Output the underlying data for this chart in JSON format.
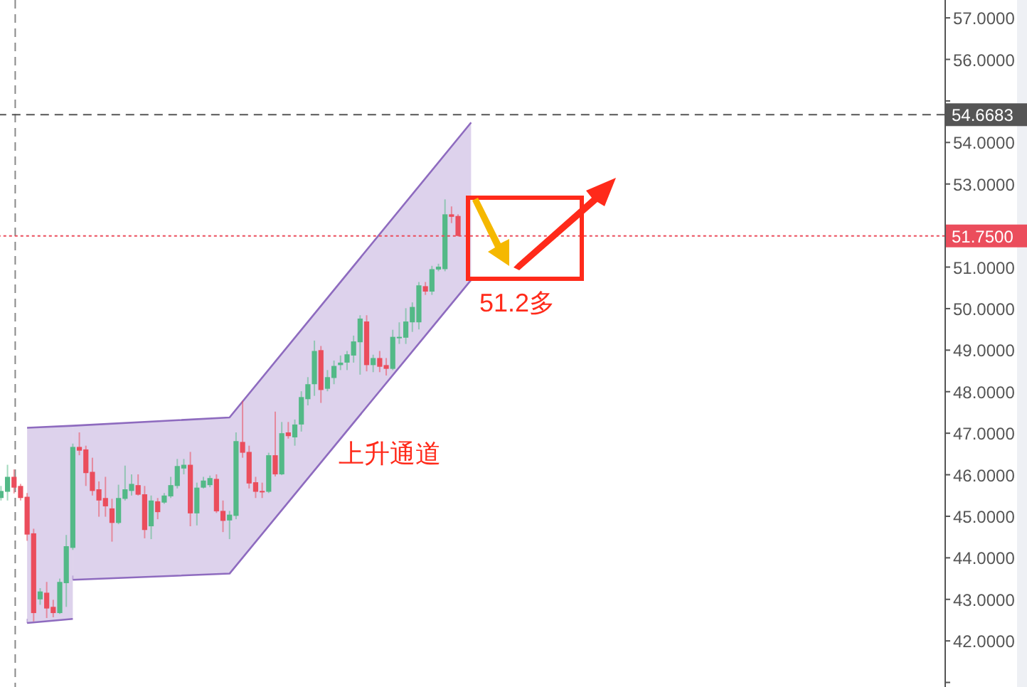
{
  "chart_data": {
    "type": "candlestick",
    "categories": [
      null,
      null,
      null,
      null,
      null,
      null,
      null,
      null,
      null,
      null,
      null,
      null,
      null,
      null,
      null,
      null,
      null,
      null,
      null,
      null,
      null,
      null,
      null,
      null,
      null,
      null,
      null,
      null,
      null,
      null,
      null,
      null,
      null,
      null,
      null,
      null,
      null,
      null,
      null,
      null,
      null,
      null,
      null,
      null,
      null,
      null,
      null,
      null,
      null,
      null,
      null,
      null,
      null,
      null,
      null,
      null,
      null,
      null,
      null,
      null,
      null,
      null,
      null,
      null,
      null,
      null,
      null,
      null,
      null,
      null,
      null,
      null,
      null,
      null,
      null,
      null,
      null,
      null,
      null,
      null,
      null,
      null,
      null,
      null,
      null,
      null,
      null,
      null,
      null,
      null,
      null,
      null,
      null,
      null,
      null,
      null,
      null,
      null,
      null,
      null,
      null,
      null,
      null,
      null,
      null,
      null,
      null,
      null,
      null,
      null,
      null,
      null,
      null,
      null,
      null,
      null,
      null,
      null,
      null,
      null,
      null,
      null,
      null,
      null,
      null,
      null,
      null,
      null,
      null,
      null,
      null,
      null,
      null,
      null,
      null,
      null,
      null,
      null,
      null,
      null,
      null,
      null,
      null,
      null,
      null
    ],
    "ohlc": [
      [
        45.44,
        45.73,
        45.38,
        45.61
      ],
      [
        45.59,
        46.24,
        45.38,
        45.95
      ],
      [
        45.95,
        46.13,
        45.55,
        45.69
      ],
      [
        45.73,
        45.78,
        45.38,
        45.44
      ],
      [
        45.47,
        45.56,
        44.41,
        44.56
      ],
      [
        44.59,
        44.7,
        42.47,
        42.67
      ],
      [
        43.0,
        43.27,
        42.87,
        43.19
      ],
      [
        43.16,
        43.42,
        42.55,
        42.78
      ],
      [
        42.82,
        42.99,
        42.57,
        42.67
      ],
      [
        42.67,
        43.5,
        42.65,
        43.42
      ],
      [
        43.39,
        44.55,
        42.82,
        44.28
      ],
      [
        44.24,
        46.75,
        44.19,
        46.67
      ],
      [
        46.67,
        47.02,
        46.47,
        46.58
      ],
      [
        46.61,
        46.7,
        45.73,
        46.04
      ],
      [
        46.07,
        46.41,
        45.5,
        45.61
      ],
      [
        45.65,
        45.84,
        44.99,
        45.38
      ],
      [
        45.44,
        45.95,
        44.99,
        45.24
      ],
      [
        45.19,
        45.42,
        44.39,
        44.84
      ],
      [
        44.84,
        45.76,
        44.81,
        45.44
      ],
      [
        45.42,
        46.22,
        45.38,
        45.65
      ],
      [
        45.61,
        46.01,
        45.5,
        45.78
      ],
      [
        45.75,
        46.01,
        45.5,
        45.52
      ],
      [
        45.53,
        45.73,
        44.47,
        44.67
      ],
      [
        44.76,
        45.5,
        44.45,
        45.38
      ],
      [
        45.36,
        45.44,
        44.93,
        45.1
      ],
      [
        45.33,
        45.56,
        45.3,
        45.5
      ],
      [
        45.48,
        45.95,
        45.44,
        45.75
      ],
      [
        45.73,
        46.38,
        45.67,
        46.21
      ],
      [
        46.15,
        46.38,
        46.01,
        46.24
      ],
      [
        46.24,
        46.55,
        44.76,
        45.07
      ],
      [
        45.07,
        45.81,
        44.78,
        45.69
      ],
      [
        45.69,
        45.95,
        45.67,
        45.86
      ],
      [
        45.75,
        45.98,
        45.7,
        45.92
      ],
      [
        45.9,
        46.01,
        45.08,
        45.12
      ],
      [
        45.13,
        45.38,
        44.62,
        44.89
      ],
      [
        44.9,
        45.13,
        44.45,
        45.04
      ],
      [
        45.01,
        47.02,
        44.93,
        46.81
      ],
      [
        46.79,
        47.78,
        46.41,
        46.53
      ],
      [
        46.55,
        46.7,
        45.67,
        45.79
      ],
      [
        45.82,
        45.95,
        45.44,
        45.59
      ],
      [
        45.61,
        45.81,
        45.44,
        45.58
      ],
      [
        45.59,
        46.53,
        45.56,
        46.47
      ],
      [
        46.47,
        47.52,
        45.96,
        46.01
      ],
      [
        46.01,
        47.27,
        45.99,
        47.0
      ],
      [
        47.02,
        47.27,
        46.87,
        46.93
      ],
      [
        46.9,
        47.33,
        46.7,
        47.21
      ],
      [
        47.21,
        48.01,
        47.04,
        47.87
      ],
      [
        47.82,
        48.35,
        47.67,
        48.18
      ],
      [
        48.18,
        49.23,
        47.9,
        48.98
      ],
      [
        49.0,
        49.1,
        47.73,
        48.04
      ],
      [
        48.07,
        48.52,
        48.01,
        48.35
      ],
      [
        48.33,
        48.75,
        48.18,
        48.62
      ],
      [
        48.64,
        48.87,
        48.52,
        48.7
      ],
      [
        48.7,
        48.98,
        48.52,
        48.9
      ],
      [
        48.87,
        49.35,
        48.7,
        49.21
      ],
      [
        49.19,
        49.84,
        48.41,
        49.76
      ],
      [
        49.69,
        49.84,
        48.49,
        48.64
      ],
      [
        48.64,
        48.89,
        48.47,
        48.81
      ],
      [
        48.81,
        48.98,
        48.47,
        48.6
      ],
      [
        48.64,
        48.81,
        48.39,
        48.55
      ],
      [
        48.55,
        49.49,
        48.52,
        49.32
      ],
      [
        49.29,
        49.67,
        49.15,
        49.32
      ],
      [
        49.3,
        50.01,
        49.15,
        49.69
      ],
      [
        49.67,
        50.15,
        49.44,
        50.04
      ],
      [
        49.67,
        50.64,
        49.5,
        50.56
      ],
      [
        50.54,
        50.64,
        50.33,
        50.41
      ],
      [
        50.41,
        51.03,
        50.33,
        50.95
      ],
      [
        50.94,
        51.08,
        50.9,
        51.01
      ],
      [
        50.95,
        52.63,
        50.9,
        52.27
      ],
      [
        52.27,
        52.46,
        52.06,
        52.21
      ],
      [
        52.23,
        52.27,
        51.74,
        51.75
      ],
      null,
      null,
      null,
      null,
      null,
      null,
      null,
      null,
      null,
      null,
      null,
      null,
      null,
      null,
      null,
      null,
      null,
      null,
      null,
      null,
      null,
      null,
      null,
      null,
      null,
      null,
      null,
      null,
      null,
      null,
      null,
      null,
      null,
      null,
      null,
      null,
      null,
      null,
      null,
      null,
      null,
      null,
      null,
      null,
      null,
      null,
      null,
      null,
      null,
      null,
      null,
      null,
      null,
      null,
      null,
      null,
      null,
      null,
      null,
      null,
      null,
      null,
      null,
      null,
      null,
      null,
      null,
      null,
      null,
      null,
      null,
      null,
      null,
      null
    ],
    "colors": [
      "#53b987",
      "#53b987",
      "#eb4d5c",
      "#eb4d5c",
      "#eb4d5c",
      "#eb4d5c",
      "#53b987",
      "#eb4d5c",
      "#eb4d5c",
      "#53b987",
      "#53b987",
      "#53b987",
      "#eb4d5c",
      "#eb4d5c",
      "#eb4d5c",
      "#eb4d5c",
      "#eb4d5c",
      "#eb4d5c",
      "#53b987",
      "#53b987",
      "#53b987",
      "#eb4d5c",
      "#eb4d5c",
      "#53b987",
      "#eb4d5c",
      "#53b987",
      "#53b987",
      "#53b987",
      "#53b987",
      "#eb4d5c",
      "#53b987",
      "#53b987",
      "#53b987",
      "#eb4d5c",
      "#eb4d5c",
      "#53b987",
      "#53b987",
      "#eb4d5c",
      "#eb4d5c",
      "#eb4d5c",
      "#eb4d5c",
      "#53b987",
      "#eb4d5c",
      "#53b987",
      "#eb4d5c",
      "#53b987",
      "#53b987",
      "#53b987",
      "#53b987",
      "#eb4d5c",
      "#53b987",
      "#53b987",
      "#53b987",
      "#53b987",
      "#53b987",
      "#53b987",
      "#eb4d5c",
      "#53b987",
      "#eb4d5c",
      "#eb4d5c",
      "#53b987",
      "#53b987",
      "#53b987",
      "#53b987",
      "#53b987",
      "#eb4d5c",
      "#53b987",
      "#53b987",
      "#53b987",
      "#eb4d5c",
      "#eb4d5c",
      null,
      null,
      null,
      null,
      null,
      null,
      null,
      null,
      null,
      null,
      null,
      null,
      null,
      null,
      null,
      null,
      null,
      null,
      null,
      null,
      null,
      null,
      null,
      null,
      null,
      null,
      null,
      null,
      null,
      null,
      null,
      null,
      null,
      null,
      null,
      null,
      null,
      null,
      null,
      null,
      null,
      null,
      null,
      null,
      null,
      null,
      null,
      null,
      null,
      null,
      null,
      null,
      null,
      null,
      null,
      null,
      null,
      null,
      null,
      null,
      null,
      null,
      null,
      null,
      null,
      null,
      null,
      null,
      null,
      null,
      null,
      null,
      null,
      null
    ],
    "series": [
      {
        "type": "line",
        "color": "#8e6bbf",
        "values": [
          null,
          null,
          null,
          null,
          47.13,
          null,
          null,
          null,
          null,
          null,
          null,
          47.18,
          null,
          null,
          null,
          null,
          null,
          null,
          null,
          null,
          null,
          null,
          null,
          null,
          null,
          null,
          null,
          null,
          null,
          null,
          null,
          null,
          null,
          null,
          null,
          47.38,
          null,
          null,
          null,
          null,
          null,
          null,
          null,
          null,
          null,
          null,
          null,
          null,
          null,
          null,
          null,
          null,
          null,
          null,
          null,
          null,
          null,
          null,
          null,
          null,
          null,
          null,
          null,
          null,
          null,
          null,
          null,
          null,
          null,
          null,
          null,
          null,
          54.48,
          null,
          null,
          null,
          null,
          null,
          null,
          null,
          null,
          null,
          null,
          null,
          null,
          null,
          null,
          null,
          null,
          null,
          null,
          null,
          null,
          null,
          null,
          null,
          null,
          null,
          null,
          null,
          null,
          null,
          null,
          null,
          null,
          null,
          null,
          null,
          null,
          null,
          null,
          null,
          null,
          null,
          null,
          null,
          null,
          null,
          null,
          null,
          null,
          null,
          null,
          null,
          null,
          null,
          null,
          null,
          null,
          null,
          null,
          null,
          null,
          null,
          null,
          null,
          null,
          null,
          null,
          null,
          null,
          null,
          null,
          null,
          null
        ]
      },
      {
        "type": "line",
        "color": "#8e6bbf",
        "values": [
          null,
          null,
          null,
          null,
          42.43,
          null,
          null,
          null,
          null,
          null,
          null,
          42.53,
          null,
          null,
          null,
          null,
          null,
          null,
          null,
          null,
          null,
          null,
          null,
          null,
          null,
          null,
          null,
          null,
          null,
          null,
          null,
          null,
          null,
          null,
          null,
          null,
          null,
          null,
          null,
          null,
          null,
          null,
          null,
          null,
          null,
          null,
          null,
          null,
          null,
          null,
          null,
          null,
          null,
          null,
          null,
          null,
          null,
          null,
          null,
          null,
          null,
          null,
          null,
          null,
          null,
          null,
          null,
          null,
          null,
          null,
          null,
          null,
          null,
          null,
          null,
          null,
          null,
          null,
          null,
          null,
          null,
          null,
          null,
          null,
          null,
          null,
          null,
          null,
          null,
          null,
          null,
          null,
          null,
          null,
          null,
          null,
          null,
          null,
          null,
          null,
          null,
          null,
          null,
          null,
          null,
          null,
          null,
          null,
          null,
          null,
          null,
          null,
          null,
          null,
          null,
          null,
          null,
          null,
          null,
          null,
          null,
          null,
          null,
          null,
          null,
          null,
          null,
          null,
          null,
          null,
          null,
          null,
          null,
          null,
          null,
          null,
          null,
          null,
          null,
          null,
          null,
          null,
          null,
          null,
          null
        ]
      },
      {
        "type": "line",
        "color": "#8e6bbf",
        "values": [
          null,
          null,
          null,
          null,
          null,
          null,
          null,
          null,
          null,
          null,
          null,
          43.47,
          null,
          null,
          null,
          null,
          null,
          null,
          null,
          null,
          null,
          null,
          null,
          null,
          null,
          null,
          null,
          null,
          null,
          null,
          null,
          null,
          null,
          null,
          null,
          43.62,
          null,
          null,
          null,
          null,
          null,
          null,
          null,
          null,
          null,
          null,
          null,
          null,
          null,
          null,
          null,
          null,
          null,
          null,
          null,
          null,
          null,
          null,
          null,
          null,
          null,
          null,
          null,
          null,
          null,
          null,
          null,
          null,
          null,
          null,
          null,
          null,
          50.69,
          null,
          null,
          null,
          null,
          null,
          null,
          null,
          null,
          null,
          null,
          null,
          null,
          null,
          null,
          null,
          null,
          null,
          null,
          null,
          null,
          null,
          null,
          null,
          null,
          null,
          null,
          null,
          null,
          null,
          null,
          null,
          null,
          null,
          null,
          null,
          null,
          null,
          null,
          null,
          null,
          null,
          null,
          null,
          null,
          null,
          null,
          null,
          null,
          null,
          null,
          null,
          null,
          null,
          null,
          null,
          null,
          null,
          null,
          null,
          null,
          null,
          null,
          null,
          null,
          null,
          null,
          null,
          null,
          null,
          null,
          null,
          null
        ]
      }
    ],
    "ylim": [
      40.89,
      57.43
    ],
    "yticks": [
      {
        "value": 41,
        "label": null
      },
      {
        "value": 42,
        "label": "42.0000"
      },
      {
        "value": 43,
        "label": "43.0000"
      },
      {
        "value": 44,
        "label": "44.0000"
      },
      {
        "value": 45,
        "label": "45.0000"
      },
      {
        "value": 46,
        "label": "46.0000"
      },
      {
        "value": 47,
        "label": "47.0000"
      },
      {
        "value": 48,
        "label": "48.0000"
      },
      {
        "value": 49,
        "label": "49.0000"
      },
      {
        "value": 50,
        "label": "50.0000"
      },
      {
        "value": 51,
        "label": "51.0000"
      },
      {
        "value": 52,
        "label": null
      },
      {
        "value": 53,
        "label": "53.0000"
      },
      {
        "value": 54,
        "label": "54.0000"
      },
      {
        "value": 55,
        "label": null
      },
      {
        "value": 56,
        "label": "56.0000"
      },
      {
        "value": 57,
        "label": "57.0000"
      }
    ],
    "ref_lines": [
      {
        "axis": "y",
        "value": 54.6683,
        "label": "54.6683",
        "color": "#555555",
        "line_style": "dashed"
      },
      {
        "axis": "y",
        "value": 51.75,
        "label": "51.7500",
        "color": "#eb4d5c",
        "line_style": "dotted"
      }
    ],
    "annotations": [
      "上升通道",
      "51.2多"
    ],
    "grid": false
  }
}
